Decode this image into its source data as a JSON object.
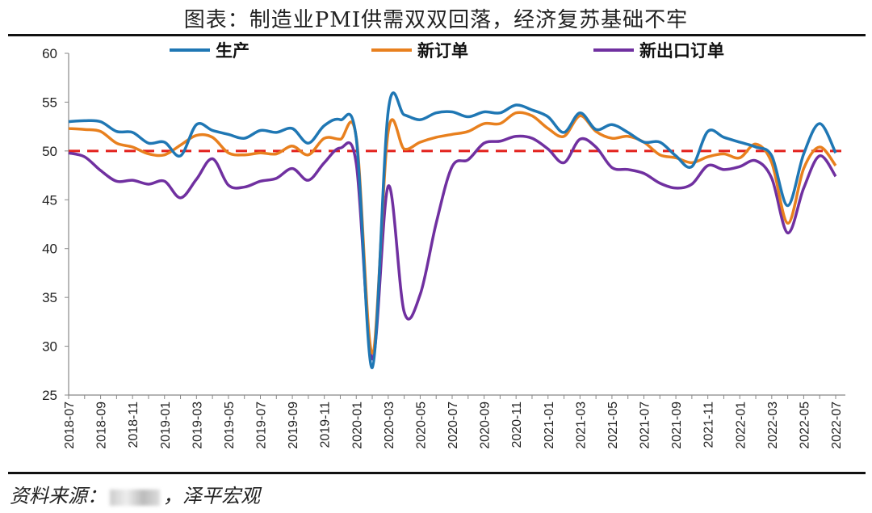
{
  "title": "图表：制造业PMI供需双双回落，经济复苏基础不牢",
  "footer": {
    "source_label": "资料来源：",
    "source_name": "，泽平宏观"
  },
  "chart_data": {
    "type": "line",
    "title": "图表：制造业PMI供需双双回落，经济复苏基础不牢",
    "xlabel": "",
    "ylabel": "",
    "ylim": [
      25,
      60
    ],
    "yticks": [
      25,
      30,
      35,
      40,
      45,
      50,
      55,
      60
    ],
    "reference_line": {
      "value": 50,
      "color": "#e3211c",
      "style": "dashed"
    },
    "legend_position": "top",
    "x": [
      "2018-07",
      "2018-08",
      "2018-09",
      "2018-10",
      "2018-11",
      "2018-12",
      "2019-01",
      "2019-02",
      "2019-03",
      "2019-04",
      "2019-05",
      "2019-06",
      "2019-07",
      "2019-08",
      "2019-09",
      "2019-10",
      "2019-11",
      "2019-12",
      "2020-01",
      "2020-02",
      "2020-03",
      "2020-04",
      "2020-05",
      "2020-06",
      "2020-07",
      "2020-08",
      "2020-09",
      "2020-10",
      "2020-11",
      "2020-12",
      "2021-01",
      "2021-02",
      "2021-03",
      "2021-04",
      "2021-05",
      "2021-06",
      "2021-07",
      "2021-08",
      "2021-09",
      "2021-10",
      "2021-11",
      "2021-12",
      "2022-01",
      "2022-02",
      "2022-03",
      "2022-04",
      "2022-05",
      "2022-06",
      "2022-07"
    ],
    "series": [
      {
        "name": "生产",
        "color": "#1f77b4",
        "values": [
          53.0,
          53.1,
          53.0,
          52.0,
          51.9,
          50.8,
          50.9,
          49.5,
          52.7,
          52.1,
          51.7,
          51.3,
          52.1,
          51.9,
          52.3,
          50.8,
          52.6,
          53.2,
          51.3,
          27.8,
          54.1,
          53.7,
          53.2,
          53.9,
          54.0,
          53.5,
          54.0,
          53.9,
          54.7,
          54.2,
          53.5,
          51.9,
          53.9,
          52.2,
          52.7,
          51.9,
          50.9,
          50.9,
          49.5,
          48.4,
          52.0,
          51.4,
          50.9,
          50.4,
          49.5,
          44.4,
          49.7,
          52.8,
          49.8
        ]
      },
      {
        "name": "新订单",
        "color": "#e8801e",
        "values": [
          52.3,
          52.2,
          52.0,
          50.8,
          50.4,
          49.7,
          49.6,
          50.6,
          51.6,
          51.4,
          49.8,
          49.6,
          49.8,
          49.7,
          50.5,
          49.6,
          51.3,
          51.2,
          51.4,
          29.3,
          52.0,
          50.2,
          50.9,
          51.4,
          51.7,
          52.0,
          52.8,
          52.8,
          53.9,
          53.6,
          52.3,
          51.5,
          53.6,
          52.0,
          51.3,
          51.5,
          50.9,
          49.6,
          49.3,
          48.8,
          49.4,
          49.7,
          49.3,
          50.7,
          48.8,
          42.6,
          48.2,
          50.4,
          48.5
        ]
      },
      {
        "name": "新出口订单",
        "color": "#7030a0",
        "values": [
          49.8,
          49.4,
          48.0,
          46.9,
          47.0,
          46.6,
          46.9,
          45.2,
          47.1,
          49.2,
          46.5,
          46.3,
          46.9,
          47.2,
          48.2,
          47.0,
          48.8,
          50.3,
          48.7,
          28.7,
          46.4,
          33.5,
          35.3,
          42.6,
          48.4,
          49.1,
          50.8,
          51.0,
          51.5,
          51.3,
          50.2,
          48.8,
          51.2,
          50.4,
          48.3,
          48.1,
          47.7,
          46.7,
          46.2,
          46.6,
          48.5,
          48.1,
          48.4,
          49.0,
          47.2,
          41.6,
          46.2,
          49.5,
          47.4
        ]
      }
    ]
  }
}
